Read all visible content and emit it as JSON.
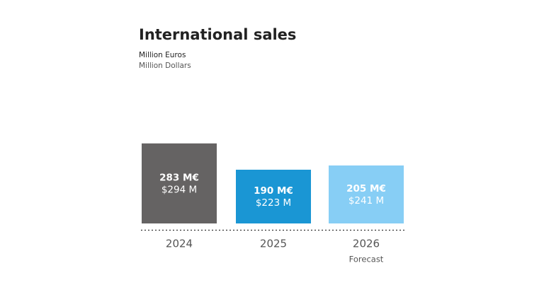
{
  "chart_data": {
    "type": "bar",
    "title": "International sales",
    "categories": [
      "2024",
      "2025",
      "2026"
    ],
    "colors": [
      "#656363",
      "#1a96d4",
      "#87cef5"
    ],
    "series": [
      {
        "name": "Million Euros",
        "values": [
          283,
          190,
          205
        ],
        "value_labels": [
          "283 M€",
          "190 M€",
          "205 M€"
        ]
      },
      {
        "name": "Million Dollars",
        "values": [
          294,
          223,
          241
        ],
        "value_labels": [
          "$294 M",
          "$223 M",
          "$241 M"
        ]
      }
    ],
    "annotations": [
      {
        "x": "2026",
        "text": "Forecast"
      }
    ]
  }
}
